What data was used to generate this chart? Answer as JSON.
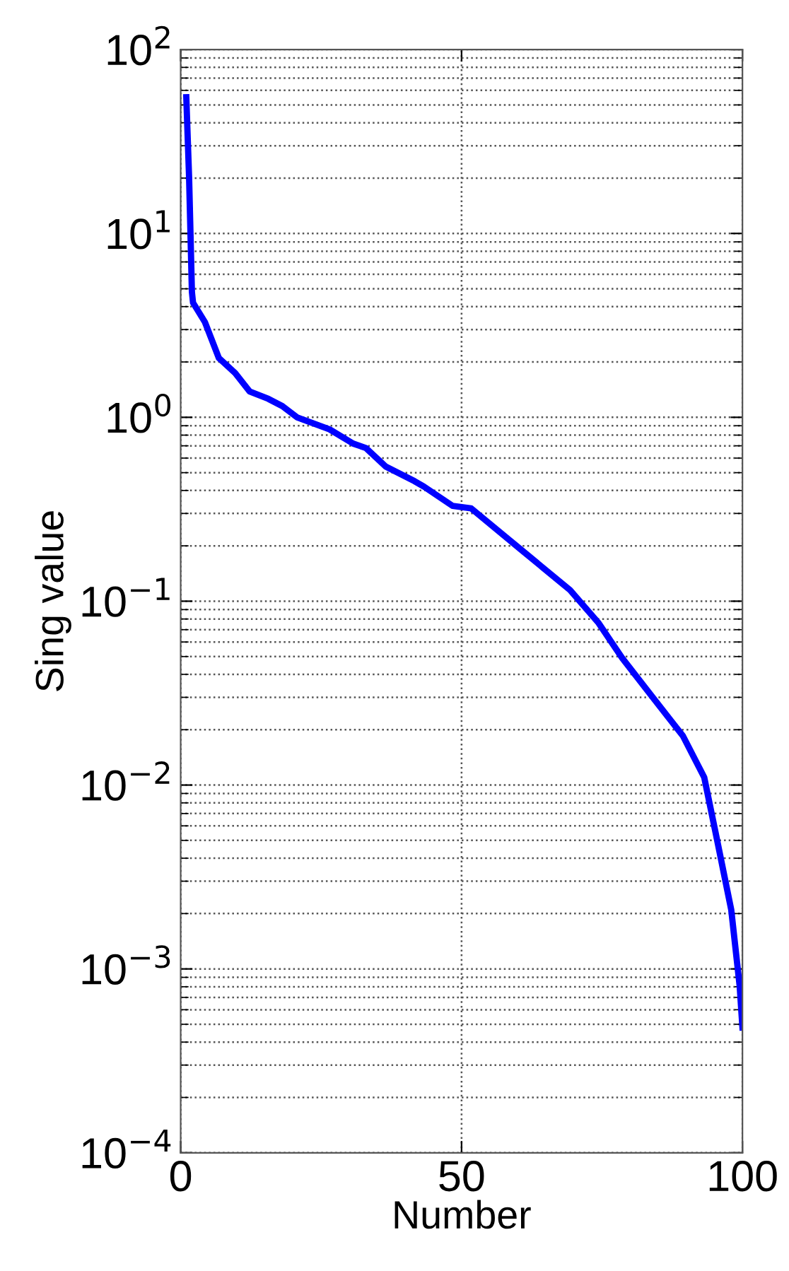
{
  "chart_data": {
    "type": "line",
    "xlabel": "Number",
    "ylabel": "Sing value",
    "log": "y",
    "grid": true,
    "line_style": "solid",
    "marker": "none",
    "xlim": [
      0,
      100
    ],
    "xticks": [
      0,
      50,
      100
    ],
    "ylim": [
      0.0001,
      100
    ],
    "yticks": [
      {
        "value": 0.0001,
        "label": "10$^{−4}$"
      },
      {
        "value": 0.001,
        "label": "10$^{−3}$"
      },
      {
        "value": 0.01,
        "label": "10$^{−2}$"
      },
      {
        "value": 0.1,
        "label": "10$^{−1}$"
      },
      {
        "value": 1,
        "label": "10$^{0}$"
      },
      {
        "value": 10,
        "label": "10$^{1}$"
      },
      {
        "value": 100,
        "label": "10$^{2}$"
      }
    ],
    "series": [
      {
        "color": "#0000ff",
        "x": [
          1,
          1.5,
          2,
          2.2,
          4.3,
          6.8,
          9.7,
          12.3,
          15.6,
          18.1,
          20.7,
          26.5,
          30.7,
          33,
          36.5,
          41.6,
          43.3,
          48.4,
          51.7,
          60.2,
          69.3,
          74.4,
          78.6,
          84.4,
          89.4,
          93.2,
          95.5,
          98,
          99.5,
          100
        ],
        "values": [
          55,
          20,
          4.8,
          4.2,
          3.3,
          2.1,
          1.74,
          1.38,
          1.26,
          1.15,
          1.0,
          0.86,
          0.72,
          0.68,
          0.54,
          0.45,
          0.42,
          0.33,
          0.32,
          0.195,
          0.115,
          0.076,
          0.049,
          0.029,
          0.0185,
          0.011,
          0.005,
          0.0021,
          0.00081,
          0.00048
        ]
      }
    ]
  }
}
